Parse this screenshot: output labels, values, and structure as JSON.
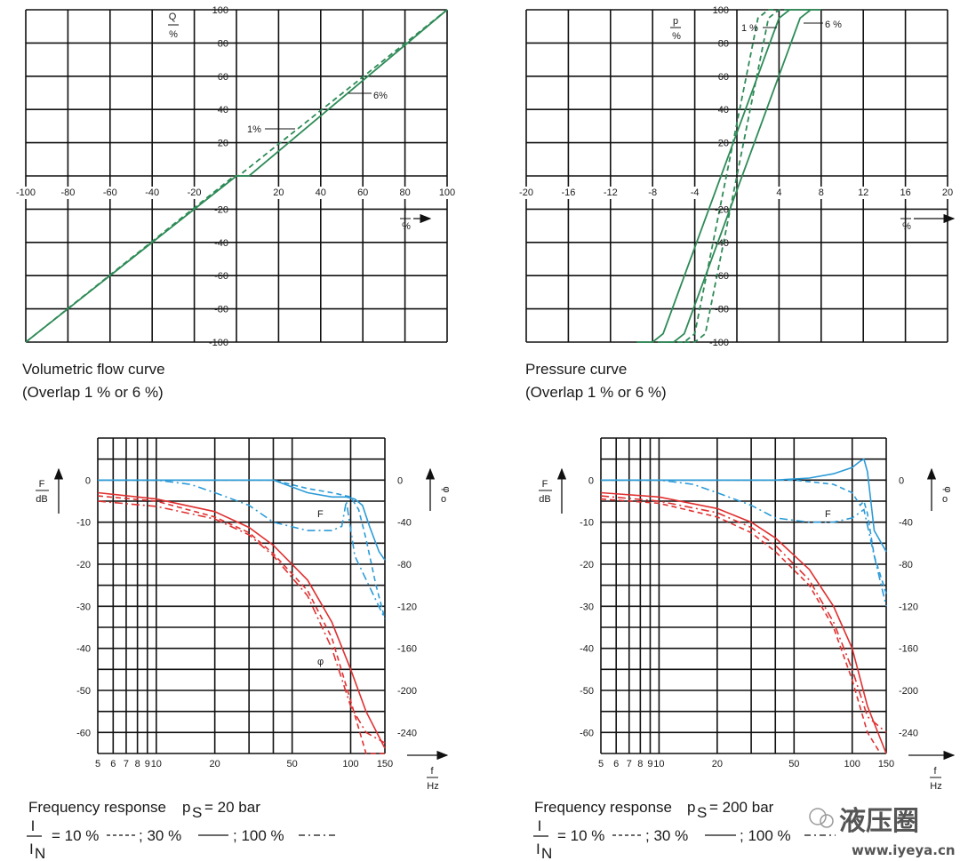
{
  "chart_data": [
    {
      "type": "line",
      "id": "flow",
      "title": "Volumetric flow curve",
      "subtitle": "(Overlap 1 % or 6 %)",
      "ylabel_num": "Q",
      "ylabel_den": "%",
      "xlabel_num": "I",
      "xlabel_den": "%",
      "xlim": [
        -100,
        100
      ],
      "ylim": [
        -100,
        100
      ],
      "xticks": [
        "-100",
        "-80",
        "-60",
        "-40",
        "-20",
        "20",
        "40",
        "60",
        "80",
        "100"
      ],
      "yticks": [
        "100",
        "80",
        "60",
        "40",
        "20",
        "-20",
        "-40",
        "-60",
        "-80",
        "-100"
      ],
      "annotations": [
        "1%",
        "6%"
      ],
      "color": "#2e8b57",
      "series": [
        {
          "style": "solid",
          "x": [
            -100,
            0,
            6,
            100
          ],
          "y": [
            -100,
            0,
            0,
            100
          ]
        },
        {
          "style": "dashed",
          "x": [
            -100,
            -1,
            1,
            100
          ],
          "y": [
            -100,
            0,
            0,
            100
          ]
        }
      ]
    },
    {
      "type": "line",
      "id": "pressure",
      "title": "Pressure curve",
      "subtitle": "(Overlap 1 % or 6 %)",
      "ylabel_num": "p",
      "ylabel_den": "%",
      "xlabel_num": "I",
      "xlabel_den": "%",
      "xlim": [
        -20,
        20
      ],
      "ylim": [
        -100,
        100
      ],
      "xticks": [
        "-20",
        "-16",
        "-12",
        "-8",
        "-4",
        "4",
        "8",
        "12",
        "16",
        "20"
      ],
      "yticks": [
        "100",
        "80",
        "60",
        "40",
        "20",
        "-20",
        "-40",
        "-60",
        "-80",
        "-100"
      ],
      "annotations": [
        "1 %",
        "6 %"
      ],
      "color": "#2e8b57",
      "series": [
        {
          "style": "solid",
          "x": [
            -9.5,
            -8,
            -7,
            4,
            5,
            7
          ],
          "y": [
            -100,
            -100,
            -95,
            95,
            100,
            100
          ]
        },
        {
          "style": "solid",
          "x": [
            -7.5,
            -6,
            -5,
            6,
            7,
            8
          ],
          "y": [
            -100,
            -100,
            -95,
            95,
            100,
            100
          ]
        },
        {
          "style": "dashed",
          "x": [
            -6.5,
            -5,
            -4,
            2,
            3,
            3.8
          ],
          "y": [
            -100,
            -100,
            -95,
            95,
            100,
            100
          ]
        },
        {
          "style": "dashed",
          "x": [
            -5,
            -4,
            -3,
            3,
            4,
            5
          ],
          "y": [
            -100,
            -100,
            -95,
            95,
            100,
            100
          ]
        }
      ]
    },
    {
      "type": "line",
      "id": "freq20",
      "title": "Frequency response",
      "pressure_label": "p",
      "pressure_sub": "S",
      "pressure_value": "= 20 bar",
      "legend_ratio_num": "I",
      "legend_ratio_den": "I",
      "legend_ratio_den_sub": "N",
      "legend_items": [
        "= 10 %",
        "; 30 %",
        "; 100 %"
      ],
      "ylabel_num": "F",
      "ylabel_den": "dB",
      "y2label_num": "φ",
      "y2label_den": "o",
      "xlabel_num": "f",
      "xlabel_den": "Hz",
      "xscale": "log",
      "xlim": [
        5,
        150
      ],
      "ylim": [
        -65,
        10
      ],
      "y2lim": [
        -260,
        40
      ],
      "xticks": [
        "5",
        "6",
        "7",
        "8",
        "9",
        "10",
        "20",
        "50",
        "100",
        "150"
      ],
      "yticks": [
        "0",
        "-10",
        "-20",
        "-30",
        "-40",
        "-50",
        "-60"
      ],
      "y2ticks": [
        "0",
        "-40",
        "-80",
        "-120",
        "-160",
        "-200",
        "-240"
      ],
      "annotations": [
        "F",
        "φ"
      ],
      "amplitude_color": "#2b9bd8",
      "phase_color": "#e03030",
      "amplitude": [
        {
          "name": "10 %",
          "style": "dashed",
          "x": [
            5,
            20,
            40,
            60,
            80,
            90,
            100,
            110,
            120,
            135,
            150
          ],
          "y": [
            0,
            0,
            0,
            -2,
            -3,
            -3.5,
            -4,
            -7,
            -14,
            -25,
            -33
          ]
        },
        {
          "name": "30 %",
          "style": "solid",
          "x": [
            5,
            20,
            40,
            60,
            80,
            95,
            105,
            115,
            125,
            140,
            150
          ],
          "y": [
            0,
            0,
            0,
            -3,
            -4,
            -4,
            -4.5,
            -6,
            -11,
            -17,
            -19
          ]
        },
        {
          "name": "100 %",
          "style": "dashdot",
          "x": [
            5,
            10,
            15,
            20,
            30,
            40,
            60,
            80,
            90,
            95,
            105,
            130,
            150
          ],
          "y": [
            0,
            0,
            -1,
            -3,
            -6,
            -10,
            -12,
            -12,
            -11,
            -5,
            -18,
            -27,
            -33
          ]
        }
      ],
      "phase": [
        {
          "name": "10 %",
          "style": "dashed",
          "x": [
            5,
            10,
            20,
            30,
            40,
            60,
            80,
            100,
            120,
            150
          ],
          "y": [
            -15,
            -20,
            -35,
            -50,
            -70,
            -105,
            -150,
            -210,
            -260,
            -260
          ]
        },
        {
          "name": "30 %",
          "style": "solid",
          "x": [
            5,
            10,
            20,
            30,
            40,
            60,
            80,
            100,
            120,
            150
          ],
          "y": [
            -12,
            -18,
            -30,
            -45,
            -62,
            -95,
            -135,
            -180,
            -220,
            -255
          ]
        },
        {
          "name": "100 %",
          "style": "dashdot",
          "x": [
            5,
            10,
            20,
            30,
            40,
            60,
            80,
            100,
            120,
            150
          ],
          "y": [
            -20,
            -25,
            -37,
            -52,
            -72,
            -110,
            -160,
            -215,
            -240,
            -250
          ]
        }
      ]
    },
    {
      "type": "line",
      "id": "freq200",
      "title": "Frequency response",
      "pressure_label": "p",
      "pressure_sub": "S",
      "pressure_value": "= 200 bar",
      "legend_ratio_num": "I",
      "legend_ratio_den": "I",
      "legend_ratio_den_sub": "N",
      "legend_items": [
        "= 10 %",
        "; 30 %",
        "; 100 %"
      ],
      "ylabel_num": "F",
      "ylabel_den": "dB",
      "y2label_num": "φ",
      "y2label_den": "o",
      "xlabel_num": "f",
      "xlabel_den": "Hz",
      "xscale": "log",
      "xlim": [
        5,
        150
      ],
      "ylim": [
        -65,
        10
      ],
      "y2lim": [
        -260,
        40
      ],
      "xticks": [
        "5",
        "6",
        "7",
        "8",
        "9",
        "10",
        "20",
        "50",
        "100",
        "150"
      ],
      "yticks": [
        "0",
        "-10",
        "-20",
        "-30",
        "-40",
        "-50",
        "-60"
      ],
      "y2ticks": [
        "0",
        "-40",
        "-80",
        "-120",
        "-160",
        "-200",
        "-240"
      ],
      "annotations": [
        "F"
      ],
      "amplitude_color": "#2b9bd8",
      "phase_color": "#e03030",
      "amplitude": [
        {
          "name": "10 %",
          "style": "dashed",
          "x": [
            5,
            20,
            50,
            80,
            100,
            110,
            115,
            120,
            130,
            150
          ],
          "y": [
            0,
            0,
            0,
            -1,
            -3,
            -6,
            -5,
            -8,
            -18,
            -27
          ]
        },
        {
          "name": "30 %",
          "style": "solid",
          "x": [
            5,
            20,
            40,
            60,
            80,
            100,
            110,
            115,
            120,
            130,
            150
          ],
          "y": [
            0,
            0,
            0,
            0.5,
            1.5,
            3,
            4.5,
            5,
            2,
            -12,
            -17
          ]
        },
        {
          "name": "100 %",
          "style": "dashdot",
          "x": [
            5,
            10,
            15,
            20,
            30,
            40,
            60,
            80,
            100,
            115,
            130,
            150
          ],
          "y": [
            0,
            0,
            -1,
            -3,
            -6,
            -9,
            -10,
            -10,
            -9,
            -7,
            -18,
            -30
          ]
        }
      ],
      "phase": [
        {
          "name": "10 %",
          "style": "dashed",
          "x": [
            5,
            10,
            20,
            30,
            40,
            60,
            80,
            100,
            120,
            140
          ],
          "y": [
            -18,
            -22,
            -35,
            -50,
            -68,
            -100,
            -140,
            -190,
            -240,
            -260
          ]
        },
        {
          "name": "30 %",
          "style": "solid",
          "x": [
            5,
            10,
            20,
            30,
            40,
            60,
            80,
            100,
            120,
            150
          ],
          "y": [
            -12,
            -16,
            -27,
            -40,
            -55,
            -85,
            -120,
            -160,
            -215,
            -260
          ]
        },
        {
          "name": "100 %",
          "style": "dashdot",
          "x": [
            5,
            10,
            20,
            30,
            40,
            60,
            80,
            100,
            120,
            150
          ],
          "y": [
            -15,
            -20,
            -31,
            -45,
            -62,
            -95,
            -135,
            -180,
            -225,
            -240
          ]
        }
      ]
    }
  ],
  "watermark": {
    "brand": "液压圈",
    "url": "www.iyeya.cn"
  }
}
